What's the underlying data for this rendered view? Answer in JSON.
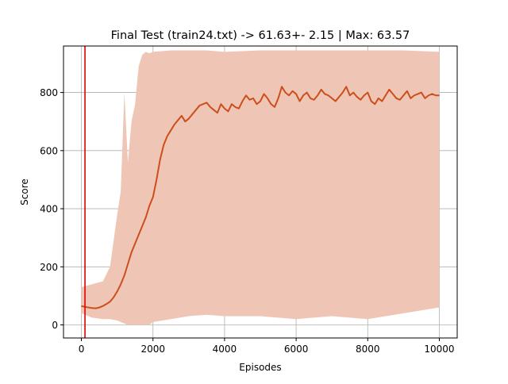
{
  "chart_data": {
    "type": "line",
    "title": "Final Test (train24.txt) -> 61.63+- 2.15 | Max: 63.57",
    "xlabel": "Episodes",
    "ylabel": "Score",
    "xlim": [
      -500,
      10500
    ],
    "ylim": [
      -45,
      960
    ],
    "xticks": [
      0,
      2000,
      4000,
      6000,
      8000,
      10000
    ],
    "xtick_labels": [
      "0",
      "2000",
      "4000",
      "6000",
      "8000",
      "10000"
    ],
    "yticks": [
      0,
      200,
      400,
      600,
      800
    ],
    "ytick_labels": [
      "0",
      "200",
      "400",
      "600",
      "800"
    ],
    "grid": true,
    "legend": "none",
    "vline": {
      "x": 100,
      "color": "#e00000"
    },
    "series": [
      {
        "role": "raw-range",
        "color": "#efc6b5",
        "x": [
          0,
          300,
          600,
          800,
          1000,
          1100,
          1200,
          1300,
          1400,
          1500,
          1600,
          1700,
          1800,
          1900,
          2000,
          2500,
          3000,
          3500,
          4000,
          5000,
          6000,
          7000,
          8000,
          9000,
          10000
        ],
        "upper": [
          130,
          140,
          150,
          200,
          380,
          460,
          800,
          560,
          700,
          760,
          890,
          930,
          940,
          935,
          940,
          945,
          945,
          945,
          940,
          945,
          945,
          945,
          945,
          945,
          940
        ],
        "lower": [
          40,
          25,
          20,
          20,
          15,
          10,
          5,
          0,
          0,
          0,
          0,
          0,
          0,
          0,
          10,
          20,
          30,
          35,
          30,
          30,
          20,
          30,
          20,
          40,
          60
        ]
      },
      {
        "role": "moving-average",
        "color": "#cc4e1c",
        "x": [
          0,
          100,
          200,
          300,
          400,
          500,
          600,
          700,
          800,
          900,
          1000,
          1100,
          1200,
          1300,
          1400,
          1500,
          1600,
          1700,
          1800,
          1900,
          2000,
          2100,
          2200,
          2300,
          2400,
          2500,
          2600,
          2700,
          2800,
          2900,
          3000,
          3100,
          3200,
          3300,
          3400,
          3500,
          3600,
          3700,
          3800,
          3900,
          4000,
          4100,
          4200,
          4300,
          4400,
          4500,
          4600,
          4700,
          4800,
          4900,
          5000,
          5100,
          5200,
          5300,
          5400,
          5500,
          5600,
          5700,
          5800,
          5900,
          6000,
          6100,
          6200,
          6300,
          6400,
          6500,
          6600,
          6700,
          6800,
          6900,
          7000,
          7100,
          7200,
          7300,
          7400,
          7500,
          7600,
          7700,
          7800,
          7900,
          8000,
          8100,
          8200,
          8300,
          8400,
          8500,
          8600,
          8700,
          8800,
          8900,
          9000,
          9100,
          9200,
          9300,
          9400,
          9500,
          9600,
          9700,
          9800,
          9900,
          10000
        ],
        "y": [
          65,
          62,
          60,
          58,
          57,
          60,
          65,
          72,
          80,
          95,
          115,
          140,
          170,
          210,
          250,
          280,
          310,
          340,
          370,
          410,
          440,
          500,
          570,
          620,
          650,
          670,
          690,
          705,
          720,
          700,
          710,
          725,
          740,
          755,
          760,
          765,
          750,
          740,
          730,
          760,
          745,
          735,
          760,
          750,
          745,
          770,
          790,
          775,
          780,
          760,
          770,
          795,
          780,
          760,
          750,
          780,
          820,
          800,
          790,
          805,
          795,
          770,
          790,
          800,
          780,
          775,
          790,
          810,
          795,
          790,
          780,
          770,
          785,
          800,
          820,
          790,
          800,
          785,
          775,
          790,
          800,
          770,
          760,
          780,
          770,
          790,
          810,
          795,
          780,
          775,
          790,
          805,
          780,
          790,
          795,
          800,
          780,
          790,
          795,
          790,
          790
        ]
      }
    ]
  }
}
